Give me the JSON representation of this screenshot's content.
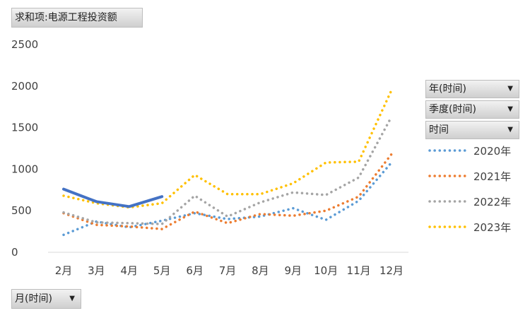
{
  "pivot": {
    "value_field": "求和项:电源工程投资额",
    "month_field": "月(时间)",
    "filters": [
      "年(时间)",
      "季度(时间)",
      "时间"
    ]
  },
  "chart_data": {
    "type": "line",
    "categories": [
      "2月",
      "3月",
      "4月",
      "5月",
      "6月",
      "7月",
      "8月",
      "9月",
      "10月",
      "11月",
      "12月"
    ],
    "ylim": [
      0,
      2500
    ],
    "yticks": [
      0,
      500,
      1000,
      1500,
      2000,
      2500
    ],
    "grid": false,
    "legend_position": "right",
    "series": [
      {
        "name": "2020年",
        "color": "#5B9BD5",
        "style": "dotted",
        "values": [
          210,
          370,
          300,
          380,
          470,
          400,
          430,
          530,
          390,
          620,
          1080
        ]
      },
      {
        "name": "2021年",
        "color": "#ED7D31",
        "style": "dotted",
        "values": [
          470,
          330,
          310,
          280,
          490,
          350,
          460,
          440,
          500,
          670,
          1180
        ]
      },
      {
        "name": "2022年",
        "color": "#A5A5A5",
        "style": "dotted",
        "values": [
          480,
          360,
          350,
          340,
          680,
          430,
          600,
          720,
          690,
          900,
          1630
        ]
      },
      {
        "name": "2023年",
        "color": "#FFC000",
        "style": "dotted",
        "values": [
          680,
          590,
          540,
          590,
          930,
          700,
          700,
          830,
          1080,
          1090,
          1950
        ]
      },
      {
        "name": "",
        "color": "#4472C4",
        "style": "solid",
        "values": [
          760,
          610,
          550,
          670,
          null,
          null,
          null,
          null,
          null,
          null,
          null
        ]
      }
    ]
  }
}
